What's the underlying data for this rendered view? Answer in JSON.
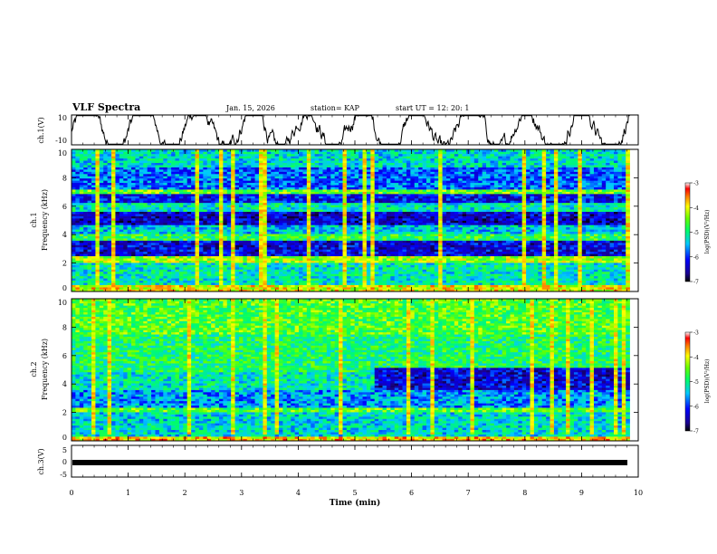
{
  "header": {
    "title": "VLF Spectra",
    "date": "Jan. 15, 2026",
    "station": "station= KAP",
    "start": "start UT =  12: 20: 1"
  },
  "chart_data": [
    {
      "type": "line",
      "name": "ch1-waveform",
      "ylabel": "ch.1(V)",
      "ylim": [
        -10,
        10
      ],
      "yticks": [
        "10",
        "-10"
      ],
      "xlim": [
        0,
        9.85
      ],
      "description": "Noisy voltage waveform oscillating roughly between -8 and +8 V",
      "amplitude_range": [
        -9,
        9
      ]
    },
    {
      "type": "heatmap",
      "name": "ch1-spectrogram",
      "ylabel_line1": "ch.1",
      "ylabel_line2": "Frequency (kHz)",
      "ylim": [
        0,
        10
      ],
      "yticks": [
        "0",
        "2",
        "4",
        "6",
        "8",
        "10"
      ],
      "xlim": [
        0,
        9.85
      ],
      "colorbar": {
        "label": "log(PSD)(V²/Hz)",
        "range": [
          -7,
          -3
        ],
        "ticks": [
          "-3",
          "-4",
          "-5",
          "-6",
          "-7"
        ]
      },
      "bands": [
        {
          "f": [
            0.0,
            0.4
          ],
          "level": -4.0
        },
        {
          "f": [
            0.4,
            2.0
          ],
          "level": -5.2
        },
        {
          "f": [
            2.0,
            2.5
          ],
          "level": -4.3
        },
        {
          "f": [
            2.5,
            3.6
          ],
          "level": -6.3
        },
        {
          "f": [
            3.6,
            4.0
          ],
          "level": -4.8
        },
        {
          "f": [
            4.0,
            4.7
          ],
          "level": -5.4
        },
        {
          "f": [
            4.7,
            5.6
          ],
          "level": -6.4
        },
        {
          "f": [
            5.6,
            6.2
          ],
          "level": -5.2
        },
        {
          "f": [
            6.2,
            6.8
          ],
          "level": -6.2
        },
        {
          "f": [
            6.8,
            7.2
          ],
          "level": -4.5
        },
        {
          "f": [
            7.2,
            8.8
          ],
          "level": -5.8
        },
        {
          "f": [
            8.8,
            10.0
          ],
          "level": -5.3
        }
      ]
    },
    {
      "type": "heatmap",
      "name": "ch2-spectrogram",
      "ylabel_line1": "ch.2",
      "ylabel_line2": "Frequency (kHz)",
      "ylim": [
        0,
        10
      ],
      "yticks": [
        "0",
        "2",
        "4",
        "6",
        "8",
        "10"
      ],
      "xlim": [
        0,
        9.85
      ],
      "colorbar": {
        "label": "log(PSD)(V²/Hz)",
        "range": [
          -7,
          -3
        ],
        "ticks": [
          "-3",
          "-4",
          "-5",
          "-6",
          "-7"
        ]
      },
      "bands": [
        {
          "f": [
            0.0,
            0.3
          ],
          "level": -3.8
        },
        {
          "f": [
            0.3,
            2.0
          ],
          "level": -5.3
        },
        {
          "f": [
            2.0,
            2.3
          ],
          "level": -4.6
        },
        {
          "f": [
            2.3,
            3.6
          ],
          "level": -5.6
        },
        {
          "f": [
            3.6,
            4.8
          ],
          "level": -5.2
        },
        {
          "f": [
            4.8,
            7.5
          ],
          "level": -4.9
        },
        {
          "f": [
            7.5,
            10.0
          ],
          "level": -4.6
        }
      ],
      "change_after_min": 5.3,
      "late_band": {
        "f": [
          3.6,
          5.2
        ],
        "level": -6.3
      }
    },
    {
      "type": "line",
      "name": "ch3-waveform",
      "ylabel": "ch.3(V)",
      "ylim": [
        -5,
        5
      ],
      "yticks": [
        "5",
        "0",
        "-5"
      ],
      "xlim": [
        0,
        9.85
      ],
      "description": "Constant near -1 V, thick band",
      "level": -1
    }
  ],
  "xaxis": {
    "label": "Time (min)",
    "range": [
      0,
      10
    ],
    "ticks": [
      "0",
      "1",
      "2",
      "3",
      "4",
      "5",
      "6",
      "7",
      "8",
      "9",
      "10"
    ]
  }
}
